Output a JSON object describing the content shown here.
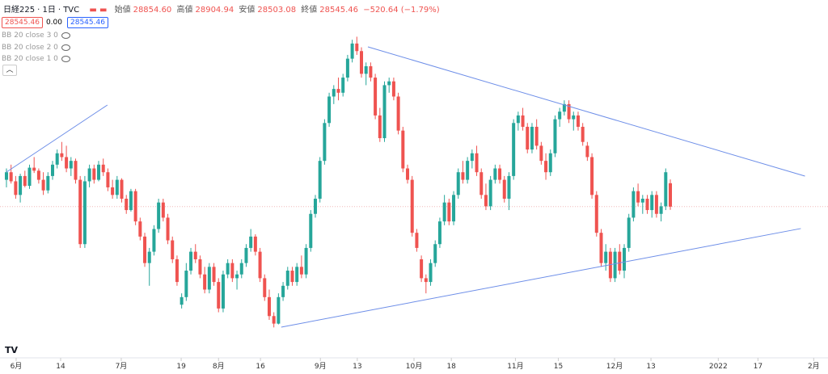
{
  "header": {
    "symbol": "日経225",
    "interval": "1日",
    "source": "TVC",
    "open_label": "始値",
    "open": "28854.60",
    "high_label": "高値",
    "high": "28904.94",
    "low_label": "安値",
    "low": "28503.08",
    "close_label": "終値",
    "close": "28545.46",
    "change": "−520.64 (−1.79%)",
    "price_box": "28545.46",
    "spread": "0.00",
    "price_box2": "28545.46",
    "indicators": [
      "BB 20 close 3 0",
      "BB 20 close 2 0",
      "BB 20 close 1 0"
    ]
  },
  "chart_data": {
    "type": "candlestick",
    "up_color": "#26a69a",
    "down_color": "#ef5350",
    "line_color": "#6d8ee8",
    "ylim": [
      26580,
      31275
    ],
    "xlim": [
      -1.4,
      178.2
    ],
    "last_price": 28545.46,
    "xticks": [
      {
        "value": 2.1,
        "label": "6月"
      },
      {
        "value": 11.75,
        "label": "14"
      },
      {
        "value": 24.9,
        "label": "7月"
      },
      {
        "value": 37.9,
        "label": "19"
      },
      {
        "value": 46,
        "label": "8月"
      },
      {
        "value": 55.1,
        "label": "16"
      },
      {
        "value": 68.1,
        "label": "9月"
      },
      {
        "value": 76.1,
        "label": "13"
      },
      {
        "value": 88.4,
        "label": "10月"
      },
      {
        "value": 96.5,
        "label": "18"
      },
      {
        "value": 110.4,
        "label": "11月"
      },
      {
        "value": 119.7,
        "label": "15"
      },
      {
        "value": 131.9,
        "label": "12月"
      },
      {
        "value": 139.8,
        "label": "13"
      },
      {
        "value": 154.4,
        "label": "2022"
      },
      {
        "value": 163,
        "label": "17"
      },
      {
        "value": 175.1,
        "label": "2月"
      }
    ],
    "trendlines": [
      [
        0,
        29002,
        21.9,
        29888
      ],
      [
        78.4,
        30656,
        173.2,
        28949
      ],
      [
        59.6,
        26954,
        172.3,
        28256
      ]
    ],
    "candles": [
      [
        28900,
        29050,
        28800,
        29000
      ],
      [
        29000,
        29100,
        28850,
        28880
      ],
      [
        28880,
        28950,
        28650,
        28700
      ],
      [
        28700,
        28980,
        28600,
        28950
      ],
      [
        28950,
        29020,
        28800,
        28820
      ],
      [
        28820,
        29100,
        28780,
        29060
      ],
      [
        29060,
        29200,
        28990,
        29020
      ],
      [
        29020,
        29050,
        28850,
        28900
      ],
      [
        28900,
        29000,
        28700,
        28760
      ],
      [
        28760,
        29000,
        28720,
        28950
      ],
      [
        28950,
        29150,
        28900,
        29100
      ],
      [
        29100,
        29300,
        29050,
        29250
      ],
      [
        29250,
        29400,
        29150,
        29200
      ],
      [
        29200,
        29350,
        29000,
        29050
      ],
      [
        29050,
        29200,
        28950,
        29150
      ],
      [
        29150,
        29180,
        28850,
        28900
      ],
      [
        28900,
        28950,
        28000,
        28050
      ],
      [
        28050,
        28950,
        28000,
        28880
      ],
      [
        28880,
        29100,
        28800,
        29050
      ],
      [
        29050,
        29100,
        28850,
        28900
      ],
      [
        28900,
        29150,
        28880,
        29100
      ],
      [
        29100,
        29180,
        28950,
        29000
      ],
      [
        29000,
        29050,
        28750,
        28800
      ],
      [
        28800,
        28900,
        28650,
        28700
      ],
      [
        28700,
        28950,
        28650,
        28900
      ],
      [
        28900,
        28920,
        28600,
        28650
      ],
      [
        28650,
        28700,
        28450,
        28500
      ],
      [
        28500,
        28780,
        28480,
        28750
      ],
      [
        28750,
        28780,
        28300,
        28350
      ],
      [
        28350,
        28400,
        28100,
        28150
      ],
      [
        28150,
        28200,
        27750,
        27800
      ],
      [
        27800,
        28000,
        27500,
        27950
      ],
      [
        27950,
        28300,
        27900,
        28250
      ],
      [
        28250,
        28650,
        28200,
        28600
      ],
      [
        28600,
        28650,
        28350,
        28400
      ],
      [
        28400,
        28450,
        28050,
        28100
      ],
      [
        28100,
        28150,
        27800,
        27850
      ],
      [
        27850,
        27900,
        27500,
        27550
      ],
      [
        27250,
        27400,
        27200,
        27350
      ],
      [
        27350,
        27800,
        27300,
        27700
      ],
      [
        27700,
        28000,
        27650,
        27950
      ],
      [
        27950,
        28050,
        27800,
        27850
      ],
      [
        27850,
        27900,
        27600,
        27650
      ],
      [
        27650,
        27750,
        27400,
        27450
      ],
      [
        27450,
        27800,
        27400,
        27750
      ],
      [
        27750,
        27800,
        27500,
        27550
      ],
      [
        27550,
        27600,
        27150,
        27200
      ],
      [
        27200,
        27700,
        27150,
        27650
      ],
      [
        27650,
        27850,
        27600,
        27800
      ],
      [
        27800,
        27850,
        27550,
        27600
      ],
      [
        27600,
        27700,
        27450,
        27650
      ],
      [
        27650,
        27850,
        27600,
        27800
      ],
      [
        27800,
        28050,
        27750,
        28000
      ],
      [
        28000,
        28250,
        27950,
        28150
      ],
      [
        28150,
        28180,
        27900,
        27950
      ],
      [
        27950,
        28000,
        27550,
        27600
      ],
      [
        27600,
        27650,
        27300,
        27350
      ],
      [
        27350,
        27450,
        27050,
        27100
      ],
      [
        27100,
        27150,
        26950,
        27000
      ],
      [
        27000,
        27400,
        26990,
        27350
      ],
      [
        27350,
        27550,
        27300,
        27500
      ],
      [
        27500,
        27750,
        27450,
        27700
      ],
      [
        27700,
        27750,
        27500,
        27550
      ],
      [
        27550,
        27800,
        27500,
        27750
      ],
      [
        27750,
        27900,
        27600,
        27650
      ],
      [
        27650,
        28050,
        27600,
        28000
      ],
      [
        28000,
        28500,
        27950,
        28450
      ],
      [
        28450,
        28700,
        28400,
        28650
      ],
      [
        28650,
        29200,
        28600,
        29150
      ],
      [
        29150,
        29700,
        29100,
        29650
      ],
      [
        29650,
        30050,
        29600,
        30000
      ],
      [
        30000,
        30150,
        29900,
        30100
      ],
      [
        30100,
        30250,
        29950,
        30050
      ],
      [
        30050,
        30300,
        30000,
        30250
      ],
      [
        30250,
        30550,
        30200,
        30500
      ],
      [
        30500,
        30750,
        30450,
        30700
      ],
      [
        30700,
        30790,
        30550,
        30600
      ],
      [
        30600,
        30650,
        30250,
        30300
      ],
      [
        30300,
        30450,
        30150,
        30400
      ],
      [
        30400,
        30450,
        30200,
        30250
      ],
      [
        30250,
        30300,
        29700,
        29750
      ],
      [
        29750,
        29850,
        29400,
        29450
      ],
      [
        29450,
        30200,
        29400,
        30150
      ],
      [
        30150,
        30250,
        30050,
        30200
      ],
      [
        30200,
        30250,
        29950,
        30000
      ],
      [
        30000,
        30050,
        29500,
        29550
      ],
      [
        29550,
        29600,
        29000,
        29050
      ],
      [
        29050,
        29100,
        28850,
        28900
      ],
      [
        28900,
        28950,
        28150,
        28200
      ],
      [
        28200,
        28250,
        27950,
        28000
      ],
      [
        27850,
        27900,
        27550,
        27600
      ],
      [
        27600,
        27650,
        27400,
        27550
      ],
      [
        27550,
        27850,
        27500,
        27800
      ],
      [
        27800,
        28100,
        27750,
        28050
      ],
      [
        28050,
        28400,
        28000,
        28350
      ],
      [
        28350,
        28700,
        28300,
        28600
      ],
      [
        28600,
        28650,
        28300,
        28350
      ],
      [
        28350,
        28750,
        28300,
        28700
      ],
      [
        28700,
        29050,
        28650,
        29000
      ],
      [
        29000,
        29150,
        28850,
        28900
      ],
      [
        28900,
        29200,
        28850,
        29150
      ],
      [
        29150,
        29300,
        29050,
        29250
      ],
      [
        29250,
        29350,
        28950,
        29000
      ],
      [
        29000,
        29050,
        28650,
        28700
      ],
      [
        28700,
        28850,
        28500,
        28550
      ],
      [
        28550,
        28950,
        28500,
        28900
      ],
      [
        28900,
        29100,
        28850,
        29050
      ],
      [
        29050,
        29100,
        28850,
        28900
      ],
      [
        28900,
        28950,
        28600,
        28650
      ],
      [
        28650,
        29000,
        28500,
        28950
      ],
      [
        28950,
        29700,
        28900,
        29650
      ],
      [
        29650,
        29800,
        29550,
        29750
      ],
      [
        29750,
        29850,
        29550,
        29600
      ],
      [
        29600,
        29650,
        29250,
        29300
      ],
      [
        29300,
        29650,
        29250,
        29600
      ],
      [
        29600,
        29700,
        29300,
        29350
      ],
      [
        29350,
        29400,
        29100,
        29150
      ],
      [
        29150,
        29250,
        28900,
        29000
      ],
      [
        29000,
        29300,
        28950,
        29250
      ],
      [
        29250,
        29750,
        29200,
        29700
      ],
      [
        29700,
        29850,
        29600,
        29800
      ],
      [
        29800,
        29950,
        29750,
        29900
      ],
      [
        29900,
        29950,
        29650,
        29700
      ],
      [
        29700,
        29800,
        29550,
        29750
      ],
      [
        29750,
        29800,
        29550,
        29600
      ],
      [
        29600,
        29650,
        29350,
        29400
      ],
      [
        29350,
        29400,
        29150,
        29200
      ],
      [
        29200,
        29250,
        28650,
        28700
      ],
      [
        28700,
        28750,
        28150,
        28200
      ],
      [
        28200,
        28250,
        27750,
        27800
      ],
      [
        27800,
        28050,
        27700,
        27950
      ],
      [
        27950,
        28000,
        27550,
        27600
      ],
      [
        27600,
        28000,
        27550,
        27950
      ],
      [
        27950,
        28050,
        27650,
        27700
      ],
      [
        27700,
        28050,
        27600,
        28000
      ],
      [
        28000,
        28450,
        27950,
        28400
      ],
      [
        28400,
        28800,
        28350,
        28750
      ],
      [
        28750,
        28850,
        28550,
        28600
      ],
      [
        28600,
        28700,
        28450,
        28650
      ],
      [
        28650,
        28700,
        28450,
        28500
      ],
      [
        28500,
        28750,
        28400,
        28700
      ],
      [
        28700,
        28750,
        28400,
        28450
      ],
      [
        28450,
        28600,
        28350,
        28550
      ],
      [
        28550,
        29050,
        28500,
        29000
      ],
      [
        28854.6,
        28904.94,
        28503.08,
        28545.46
      ]
    ]
  }
}
